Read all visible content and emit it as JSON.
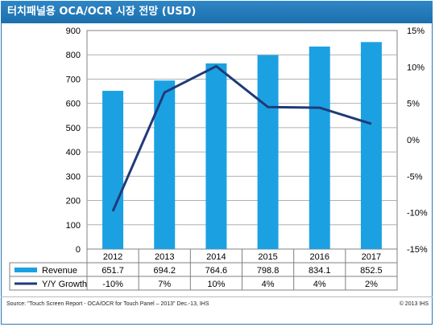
{
  "header": {
    "title": "터치패널용 OCA/OCR 시장 전망 (USD)"
  },
  "footer": {
    "source": "Source: \"Touch Screen Report - OCA/OCR for Touch Panel – 2013\" Dec.-13, IHS",
    "copyright": "© 2013 IHS"
  },
  "colors": {
    "bar": "#1ba1e2",
    "line": "#1f3a7a",
    "title_bg": "#2f86c6",
    "frame": "#2e78b7"
  },
  "chart_data": {
    "type": "bar",
    "title": "",
    "categories": [
      "2012",
      "2013",
      "2014",
      "2015",
      "2016",
      "2017"
    ],
    "y_left": {
      "min": 0,
      "max": 900,
      "ticks": [
        "0",
        "100",
        "200",
        "300",
        "400",
        "500",
        "600",
        "700",
        "800",
        "900"
      ]
    },
    "y_right": {
      "min": -15,
      "max": 15,
      "ticks": [
        "-15%",
        "-10%",
        "-5%",
        "0%",
        "5%",
        "10%",
        "15%"
      ]
    },
    "grid": true,
    "series": [
      {
        "name": "Revenue",
        "type": "bar",
        "axis": "left",
        "values": [
          651.7,
          694.2,
          764.6,
          798.8,
          834.1,
          852.5
        ],
        "labels": [
          "651.7",
          "694.2",
          "764.6",
          "798.8",
          "834.1",
          "852.5"
        ]
      },
      {
        "name": "Y/Y Growth",
        "type": "line",
        "axis": "right",
        "values": [
          -10,
          7,
          10,
          4,
          4,
          2
        ],
        "labels": [
          "-10%",
          "7%",
          "10%",
          "4%",
          "4%",
          "2%"
        ],
        "plotted": [
          -9.8,
          6.5,
          10.1,
          4.5,
          4.4,
          2.2
        ]
      }
    ],
    "legend": "data-table-bottom"
  }
}
